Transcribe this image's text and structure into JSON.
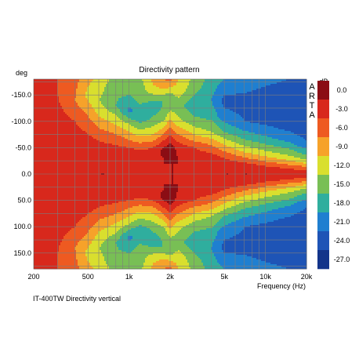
{
  "chart_data": {
    "type": "heatmap",
    "title": "Directivity pattern",
    "xlabel": "Frequency (Hz)",
    "ylabel": "deg",
    "caption": "IT-400TW Directivity vertical",
    "watermark": "ARTA",
    "x_scale": "log",
    "xlim": [
      200,
      20000
    ],
    "ylim": [
      180,
      -180
    ],
    "grid": true,
    "x_ticks": [
      {
        "value": 200,
        "label": "200"
      },
      {
        "value": 500,
        "label": "500"
      },
      {
        "value": 1000,
        "label": "1k"
      },
      {
        "value": 2000,
        "label": "2k"
      },
      {
        "value": 5000,
        "label": "5k"
      },
      {
        "value": 10000,
        "label": "10k"
      },
      {
        "value": 20000,
        "label": "20k"
      }
    ],
    "y_ticks": [
      {
        "value": -150,
        "label": "-150.0"
      },
      {
        "value": -100,
        "label": "-100.0"
      },
      {
        "value": -50,
        "label": "-50.0"
      },
      {
        "value": 0,
        "label": "0.0"
      },
      {
        "value": 50,
        "label": "50.0"
      },
      {
        "value": 100,
        "label": "100.0"
      },
      {
        "value": 150,
        "label": "150.0"
      }
    ],
    "colorbar": {
      "unit": "dB",
      "levels": [
        {
          "label": "0.0",
          "color": "#8b0d14"
        },
        {
          "label": "-3.0",
          "color": "#d8281c"
        },
        {
          "label": "-6.0",
          "color": "#ee5a21"
        },
        {
          "label": "-9.0",
          "color": "#f6a22a"
        },
        {
          "label": "-12.0",
          "color": "#d9df2e"
        },
        {
          "label": "-15.0",
          "color": "#78bf55"
        },
        {
          "label": "-18.0",
          "color": "#2fae9e"
        },
        {
          "label": "-21.0",
          "color": "#1f7fd0"
        },
        {
          "label": "-24.0",
          "color": "#1e54b6"
        },
        {
          "label": "-27.0",
          "color": "#13348a"
        }
      ]
    },
    "series": [
      {
        "freq": 200,
        "level_by_angle": [
          [
            0,
            -3
          ],
          [
            60,
            -3
          ],
          [
            110,
            -4
          ],
          [
            150,
            -5
          ],
          [
            180,
            -5
          ]
        ]
      },
      {
        "freq": 300,
        "level_by_angle": [
          [
            0,
            -3
          ],
          [
            60,
            -3
          ],
          [
            110,
            -5
          ],
          [
            150,
            -6
          ],
          [
            180,
            -6
          ]
        ]
      },
      {
        "freq": 400,
        "level_by_angle": [
          [
            0,
            -3
          ],
          [
            60,
            -4
          ],
          [
            100,
            -6
          ],
          [
            140,
            -9
          ],
          [
            180,
            -8
          ]
        ]
      },
      {
        "freq": 500,
        "level_by_angle": [
          [
            0,
            -3
          ],
          [
            50,
            -4
          ],
          [
            90,
            -7
          ],
          [
            120,
            -10
          ],
          [
            150,
            -13
          ],
          [
            180,
            -11
          ]
        ]
      },
      {
        "freq": 600,
        "level_by_angle": [
          [
            0,
            -3
          ],
          [
            45,
            -4
          ],
          [
            80,
            -8
          ],
          [
            110,
            -12
          ],
          [
            140,
            -15
          ],
          [
            180,
            -13
          ]
        ]
      },
      {
        "freq": 800,
        "level_by_angle": [
          [
            0,
            -3
          ],
          [
            40,
            -4
          ],
          [
            70,
            -8
          ],
          [
            100,
            -13
          ],
          [
            130,
            -18
          ],
          [
            170,
            -17
          ],
          [
            180,
            -16
          ]
        ]
      },
      {
        "freq": 1000,
        "level_by_angle": [
          [
            0,
            -3
          ],
          [
            40,
            -4
          ],
          [
            65,
            -9
          ],
          [
            95,
            -15
          ],
          [
            120,
            -22
          ],
          [
            150,
            -18
          ],
          [
            180,
            -16
          ]
        ]
      },
      {
        "freq": 1200,
        "level_by_angle": [
          [
            0,
            -3
          ],
          [
            35,
            -4
          ],
          [
            55,
            -8
          ],
          [
            80,
            -14
          ],
          [
            110,
            -21
          ],
          [
            140,
            -17
          ],
          [
            180,
            -16
          ]
        ]
      },
      {
        "freq": 1500,
        "level_by_angle": [
          [
            0,
            -3
          ],
          [
            35,
            -4
          ],
          [
            50,
            -6
          ],
          [
            70,
            -11
          ],
          [
            100,
            -17
          ],
          [
            130,
            -20
          ],
          [
            160,
            -13
          ],
          [
            180,
            -11
          ]
        ]
      },
      {
        "freq": 1800,
        "level_by_angle": [
          [
            0,
            -3
          ],
          [
            30,
            -3
          ],
          [
            45,
            -2
          ],
          [
            60,
            -5
          ],
          [
            80,
            -10
          ],
          [
            110,
            -17
          ],
          [
            140,
            -18
          ],
          [
            165,
            -11
          ],
          [
            180,
            -9
          ]
        ]
      },
      {
        "freq": 2000,
        "level_by_angle": [
          [
            0,
            -3
          ],
          [
            20,
            -3
          ],
          [
            40,
            -1
          ],
          [
            55,
            -2
          ],
          [
            70,
            -5
          ],
          [
            90,
            -9
          ],
          [
            120,
            -15
          ],
          [
            150,
            -16
          ],
          [
            180,
            -8
          ]
        ]
      },
      {
        "freq": 2300,
        "level_by_angle": [
          [
            0,
            -3
          ],
          [
            30,
            -3
          ],
          [
            50,
            -4
          ],
          [
            70,
            -8
          ],
          [
            100,
            -14
          ],
          [
            130,
            -17
          ],
          [
            160,
            -13
          ],
          [
            180,
            -12
          ]
        ]
      },
      {
        "freq": 3000,
        "level_by_angle": [
          [
            0,
            -3
          ],
          [
            30,
            -4
          ],
          [
            50,
            -6
          ],
          [
            70,
            -11
          ],
          [
            100,
            -17
          ],
          [
            130,
            -20
          ],
          [
            160,
            -17
          ],
          [
            180,
            -16
          ]
        ]
      },
      {
        "freq": 4000,
        "level_by_angle": [
          [
            0,
            -3
          ],
          [
            25,
            -3
          ],
          [
            40,
            -6
          ],
          [
            60,
            -10
          ],
          [
            80,
            -15
          ],
          [
            110,
            -19
          ],
          [
            140,
            -21
          ],
          [
            180,
            -19
          ]
        ]
      },
      {
        "freq": 5000,
        "level_by_angle": [
          [
            0,
            -3
          ],
          [
            20,
            -4
          ],
          [
            35,
            -7
          ],
          [
            55,
            -12
          ],
          [
            80,
            -18
          ],
          [
            110,
            -23
          ],
          [
            140,
            -25
          ],
          [
            180,
            -21
          ]
        ]
      },
      {
        "freq": 7000,
        "level_by_angle": [
          [
            0,
            -3
          ],
          [
            15,
            -4
          ],
          [
            28,
            -8
          ],
          [
            45,
            -13
          ],
          [
            70,
            -19
          ],
          [
            100,
            -24
          ],
          [
            140,
            -25
          ],
          [
            180,
            -22
          ]
        ]
      },
      {
        "freq": 10000,
        "level_by_angle": [
          [
            0,
            -3
          ],
          [
            12,
            -5
          ],
          [
            24,
            -9
          ],
          [
            40,
            -14
          ],
          [
            65,
            -20
          ],
          [
            100,
            -25
          ],
          [
            140,
            -26
          ],
          [
            180,
            -23
          ]
        ]
      },
      {
        "freq": 15000,
        "level_by_angle": [
          [
            0,
            -4
          ],
          [
            10,
            -6
          ],
          [
            20,
            -10
          ],
          [
            35,
            -15
          ],
          [
            60,
            -21
          ],
          [
            95,
            -26
          ],
          [
            140,
            -27
          ],
          [
            180,
            -24
          ]
        ]
      },
      {
        "freq": 20000,
        "level_by_angle": [
          [
            0,
            -4
          ],
          [
            10,
            -7
          ],
          [
            20,
            -12
          ],
          [
            32,
            -17
          ],
          [
            55,
            -23
          ],
          [
            90,
            -27
          ],
          [
            140,
            -27
          ],
          [
            180,
            -25
          ]
        ]
      }
    ]
  }
}
